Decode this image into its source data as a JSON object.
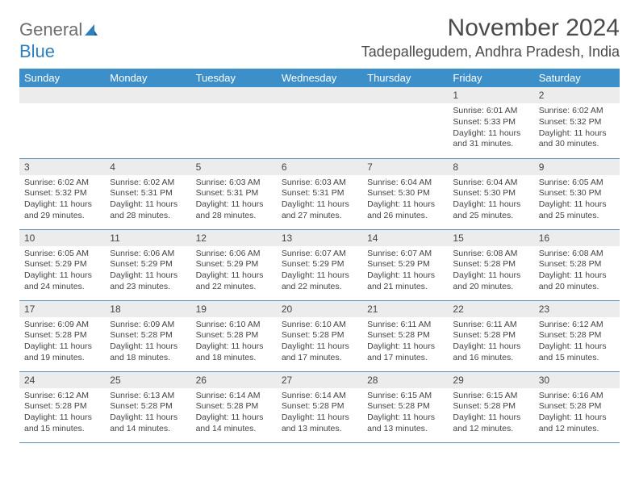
{
  "brand": {
    "part1": "General",
    "part2": "Blue"
  },
  "title": "November 2024",
  "location": "Tadepallegudem, Andhra Pradesh, India",
  "colors": {
    "header_bg": "#3d8fc9",
    "header_text": "#ffffff",
    "daynum_bg": "#ececec",
    "border": "#5a90b8",
    "brand_grey": "#6d6d6d",
    "brand_blue": "#2f7fbf"
  },
  "weekdays": [
    "Sunday",
    "Monday",
    "Tuesday",
    "Wednesday",
    "Thursday",
    "Friday",
    "Saturday"
  ],
  "weeks": [
    [
      {
        "n": "",
        "sunrise": "",
        "sunset": "",
        "daylight": ""
      },
      {
        "n": "",
        "sunrise": "",
        "sunset": "",
        "daylight": ""
      },
      {
        "n": "",
        "sunrise": "",
        "sunset": "",
        "daylight": ""
      },
      {
        "n": "",
        "sunrise": "",
        "sunset": "",
        "daylight": ""
      },
      {
        "n": "",
        "sunrise": "",
        "sunset": "",
        "daylight": ""
      },
      {
        "n": "1",
        "sunrise": "Sunrise: 6:01 AM",
        "sunset": "Sunset: 5:33 PM",
        "daylight": "Daylight: 11 hours and 31 minutes."
      },
      {
        "n": "2",
        "sunrise": "Sunrise: 6:02 AM",
        "sunset": "Sunset: 5:32 PM",
        "daylight": "Daylight: 11 hours and 30 minutes."
      }
    ],
    [
      {
        "n": "3",
        "sunrise": "Sunrise: 6:02 AM",
        "sunset": "Sunset: 5:32 PM",
        "daylight": "Daylight: 11 hours and 29 minutes."
      },
      {
        "n": "4",
        "sunrise": "Sunrise: 6:02 AM",
        "sunset": "Sunset: 5:31 PM",
        "daylight": "Daylight: 11 hours and 28 minutes."
      },
      {
        "n": "5",
        "sunrise": "Sunrise: 6:03 AM",
        "sunset": "Sunset: 5:31 PM",
        "daylight": "Daylight: 11 hours and 28 minutes."
      },
      {
        "n": "6",
        "sunrise": "Sunrise: 6:03 AM",
        "sunset": "Sunset: 5:31 PM",
        "daylight": "Daylight: 11 hours and 27 minutes."
      },
      {
        "n": "7",
        "sunrise": "Sunrise: 6:04 AM",
        "sunset": "Sunset: 5:30 PM",
        "daylight": "Daylight: 11 hours and 26 minutes."
      },
      {
        "n": "8",
        "sunrise": "Sunrise: 6:04 AM",
        "sunset": "Sunset: 5:30 PM",
        "daylight": "Daylight: 11 hours and 25 minutes."
      },
      {
        "n": "9",
        "sunrise": "Sunrise: 6:05 AM",
        "sunset": "Sunset: 5:30 PM",
        "daylight": "Daylight: 11 hours and 25 minutes."
      }
    ],
    [
      {
        "n": "10",
        "sunrise": "Sunrise: 6:05 AM",
        "sunset": "Sunset: 5:29 PM",
        "daylight": "Daylight: 11 hours and 24 minutes."
      },
      {
        "n": "11",
        "sunrise": "Sunrise: 6:06 AM",
        "sunset": "Sunset: 5:29 PM",
        "daylight": "Daylight: 11 hours and 23 minutes."
      },
      {
        "n": "12",
        "sunrise": "Sunrise: 6:06 AM",
        "sunset": "Sunset: 5:29 PM",
        "daylight": "Daylight: 11 hours and 22 minutes."
      },
      {
        "n": "13",
        "sunrise": "Sunrise: 6:07 AM",
        "sunset": "Sunset: 5:29 PM",
        "daylight": "Daylight: 11 hours and 22 minutes."
      },
      {
        "n": "14",
        "sunrise": "Sunrise: 6:07 AM",
        "sunset": "Sunset: 5:29 PM",
        "daylight": "Daylight: 11 hours and 21 minutes."
      },
      {
        "n": "15",
        "sunrise": "Sunrise: 6:08 AM",
        "sunset": "Sunset: 5:28 PM",
        "daylight": "Daylight: 11 hours and 20 minutes."
      },
      {
        "n": "16",
        "sunrise": "Sunrise: 6:08 AM",
        "sunset": "Sunset: 5:28 PM",
        "daylight": "Daylight: 11 hours and 20 minutes."
      }
    ],
    [
      {
        "n": "17",
        "sunrise": "Sunrise: 6:09 AM",
        "sunset": "Sunset: 5:28 PM",
        "daylight": "Daylight: 11 hours and 19 minutes."
      },
      {
        "n": "18",
        "sunrise": "Sunrise: 6:09 AM",
        "sunset": "Sunset: 5:28 PM",
        "daylight": "Daylight: 11 hours and 18 minutes."
      },
      {
        "n": "19",
        "sunrise": "Sunrise: 6:10 AM",
        "sunset": "Sunset: 5:28 PM",
        "daylight": "Daylight: 11 hours and 18 minutes."
      },
      {
        "n": "20",
        "sunrise": "Sunrise: 6:10 AM",
        "sunset": "Sunset: 5:28 PM",
        "daylight": "Daylight: 11 hours and 17 minutes."
      },
      {
        "n": "21",
        "sunrise": "Sunrise: 6:11 AM",
        "sunset": "Sunset: 5:28 PM",
        "daylight": "Daylight: 11 hours and 17 minutes."
      },
      {
        "n": "22",
        "sunrise": "Sunrise: 6:11 AM",
        "sunset": "Sunset: 5:28 PM",
        "daylight": "Daylight: 11 hours and 16 minutes."
      },
      {
        "n": "23",
        "sunrise": "Sunrise: 6:12 AM",
        "sunset": "Sunset: 5:28 PM",
        "daylight": "Daylight: 11 hours and 15 minutes."
      }
    ],
    [
      {
        "n": "24",
        "sunrise": "Sunrise: 6:12 AM",
        "sunset": "Sunset: 5:28 PM",
        "daylight": "Daylight: 11 hours and 15 minutes."
      },
      {
        "n": "25",
        "sunrise": "Sunrise: 6:13 AM",
        "sunset": "Sunset: 5:28 PM",
        "daylight": "Daylight: 11 hours and 14 minutes."
      },
      {
        "n": "26",
        "sunrise": "Sunrise: 6:14 AM",
        "sunset": "Sunset: 5:28 PM",
        "daylight": "Daylight: 11 hours and 14 minutes."
      },
      {
        "n": "27",
        "sunrise": "Sunrise: 6:14 AM",
        "sunset": "Sunset: 5:28 PM",
        "daylight": "Daylight: 11 hours and 13 minutes."
      },
      {
        "n": "28",
        "sunrise": "Sunrise: 6:15 AM",
        "sunset": "Sunset: 5:28 PM",
        "daylight": "Daylight: 11 hours and 13 minutes."
      },
      {
        "n": "29",
        "sunrise": "Sunrise: 6:15 AM",
        "sunset": "Sunset: 5:28 PM",
        "daylight": "Daylight: 11 hours and 12 minutes."
      },
      {
        "n": "30",
        "sunrise": "Sunrise: 6:16 AM",
        "sunset": "Sunset: 5:28 PM",
        "daylight": "Daylight: 11 hours and 12 minutes."
      }
    ]
  ]
}
